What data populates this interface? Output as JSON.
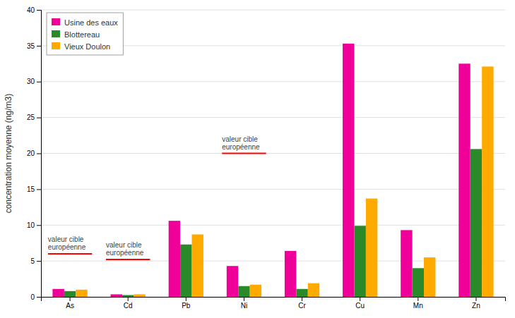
{
  "chart_data": {
    "type": "bar",
    "ylabel": "concentration moyenne (ng/m3)",
    "categories": [
      "As",
      "Cd",
      "Pb",
      "Ni",
      "Cr",
      "Cu",
      "Mn",
      "Zn"
    ],
    "series": [
      {
        "name": "Usine des eaux",
        "color": "#EE0099",
        "values": [
          1.1,
          0.35,
          10.6,
          4.3,
          6.4,
          35.3,
          9.3,
          32.5
        ]
      },
      {
        "name": "Blottereau",
        "color": "#2A8A2A",
        "values": [
          0.8,
          0.25,
          7.3,
          1.5,
          1.1,
          9.9,
          4.0,
          20.6
        ]
      },
      {
        "name": "Vieux Doulon",
        "color": "#FFAA00",
        "values": [
          1.0,
          0.35,
          8.7,
          1.7,
          1.9,
          13.7,
          5.5,
          32.1
        ]
      }
    ],
    "reference_lines": [
      {
        "category": "As",
        "value": 6.0,
        "color": "red",
        "label": "valeur cible\neuropéenne"
      },
      {
        "category": "Cd",
        "value": 5.2,
        "color": "red",
        "label": "valeur cible\neuropéenne"
      },
      {
        "category": "Ni",
        "value": 20.0,
        "color": "red",
        "label": "valeur cible\neuropéenne"
      }
    ],
    "ylim": [
      0,
      40
    ],
    "yticks": [
      0,
      5,
      10,
      15,
      20,
      25,
      30,
      35,
      40
    ],
    "grid": true,
    "legend": "upper left"
  }
}
